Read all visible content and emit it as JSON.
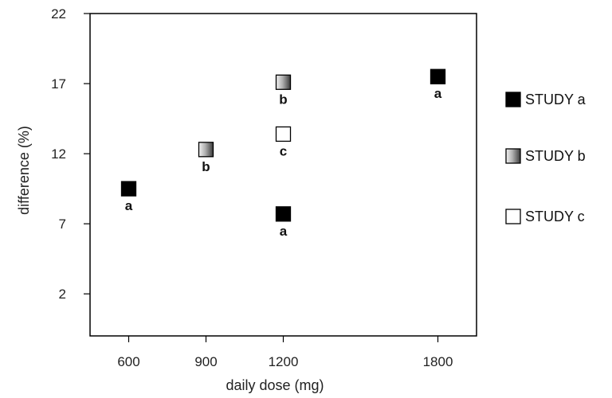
{
  "chart_data": {
    "type": "scatter",
    "title": "",
    "xlabel": "daily dose (mg)",
    "ylabel": "difference (%)",
    "x_ticks": [
      600,
      900,
      1200,
      1800
    ],
    "y_ticks": [
      2,
      7,
      12,
      17,
      22
    ],
    "xlim": [
      450,
      1950
    ],
    "ylim": [
      -1,
      22
    ],
    "grid": false,
    "legend_position": "right",
    "series": [
      {
        "name": "STUDY a",
        "marker_style": "solid",
        "color": "#000000",
        "points": [
          {
            "x": 600,
            "y": 9.5,
            "label": "a"
          },
          {
            "x": 1200,
            "y": 7.7,
            "label": "a"
          },
          {
            "x": 1800,
            "y": 17.5,
            "label": "a"
          }
        ]
      },
      {
        "name": "STUDY b",
        "marker_style": "gradient",
        "color": "#888888",
        "points": [
          {
            "x": 900,
            "y": 12.3,
            "label": "b"
          },
          {
            "x": 1200,
            "y": 17.1,
            "label": "b"
          }
        ]
      },
      {
        "name": "STUDY c",
        "marker_style": "hollow",
        "color": "#000000",
        "points": [
          {
            "x": 1200,
            "y": 13.4,
            "label": "c"
          }
        ]
      }
    ]
  }
}
